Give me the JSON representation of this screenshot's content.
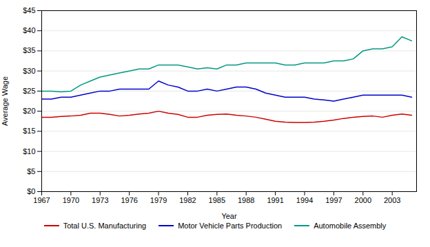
{
  "chart_data": {
    "type": "line",
    "xlabel": "Year",
    "ylabel": "Average Wage",
    "x": [
      1967,
      1968,
      1969,
      1970,
      1971,
      1972,
      1973,
      1974,
      1975,
      1976,
      1977,
      1978,
      1979,
      1980,
      1981,
      1982,
      1983,
      1984,
      1985,
      1986,
      1987,
      1988,
      1989,
      1990,
      1991,
      1992,
      1993,
      1994,
      1995,
      1996,
      1997,
      1998,
      1999,
      2000,
      2001,
      2002,
      2003,
      2004,
      2005
    ],
    "series": [
      {
        "name": "Total U.S. Manufacturing",
        "color": "#cc0000",
        "values": [
          18.5,
          18.5,
          18.7,
          18.8,
          19.0,
          19.5,
          19.5,
          19.2,
          18.8,
          19.0,
          19.3,
          19.5,
          20.0,
          19.5,
          19.2,
          18.5,
          18.5,
          19.0,
          19.2,
          19.3,
          19.0,
          18.8,
          18.5,
          18.0,
          17.5,
          17.3,
          17.2,
          17.2,
          17.3,
          17.5,
          17.8,
          18.2,
          18.5,
          18.7,
          18.8,
          18.5,
          19.0,
          19.3,
          19.0
        ]
      },
      {
        "name": "Motor Vehicle Parts Production",
        "color": "#0000cc",
        "values": [
          23.0,
          23.0,
          23.5,
          23.5,
          24.0,
          24.5,
          25.0,
          25.0,
          25.5,
          25.5,
          25.5,
          25.5,
          27.5,
          26.5,
          26.0,
          25.0,
          25.0,
          25.5,
          25.0,
          25.5,
          26.0,
          26.0,
          25.5,
          24.5,
          24.0,
          23.5,
          23.5,
          23.5,
          23.0,
          22.8,
          22.5,
          23.0,
          23.5,
          24.0,
          24.0,
          24.0,
          24.0,
          24.0,
          23.5
        ]
      },
      {
        "name": "Automobile Assembly",
        "color": "#009980",
        "values": [
          25.0,
          25.0,
          24.8,
          25.0,
          26.5,
          27.5,
          28.5,
          29.0,
          29.5,
          30.0,
          30.5,
          30.5,
          31.5,
          31.5,
          31.5,
          31.0,
          30.5,
          30.8,
          30.5,
          31.5,
          31.5,
          32.0,
          32.0,
          32.0,
          32.0,
          31.5,
          31.5,
          32.0,
          32.0,
          32.0,
          32.5,
          32.5,
          33.0,
          35.0,
          35.5,
          35.5,
          36.0,
          38.5,
          37.5
        ]
      }
    ],
    "xlim": [
      1967,
      2005.5
    ],
    "xticks": [
      1967,
      1970,
      1973,
      1976,
      1979,
      1982,
      1985,
      1988,
      1991,
      1994,
      1997,
      2000,
      2003
    ],
    "ylim": [
      0,
      45
    ],
    "yticks": [
      {
        "value": 0,
        "label": "$0"
      },
      {
        "value": 5,
        "label": "$5"
      },
      {
        "value": 10,
        "label": "$10"
      },
      {
        "value": 15,
        "label": "$15"
      },
      {
        "value": 20,
        "label": "$20"
      },
      {
        "value": 25,
        "label": "$25"
      },
      {
        "value": 30,
        "label": "$30"
      },
      {
        "value": 35,
        "label": "$35"
      },
      {
        "value": 40,
        "label": "$40"
      },
      {
        "value": 45,
        "label": "$45"
      }
    ],
    "grid": true,
    "legend": "bottom"
  }
}
